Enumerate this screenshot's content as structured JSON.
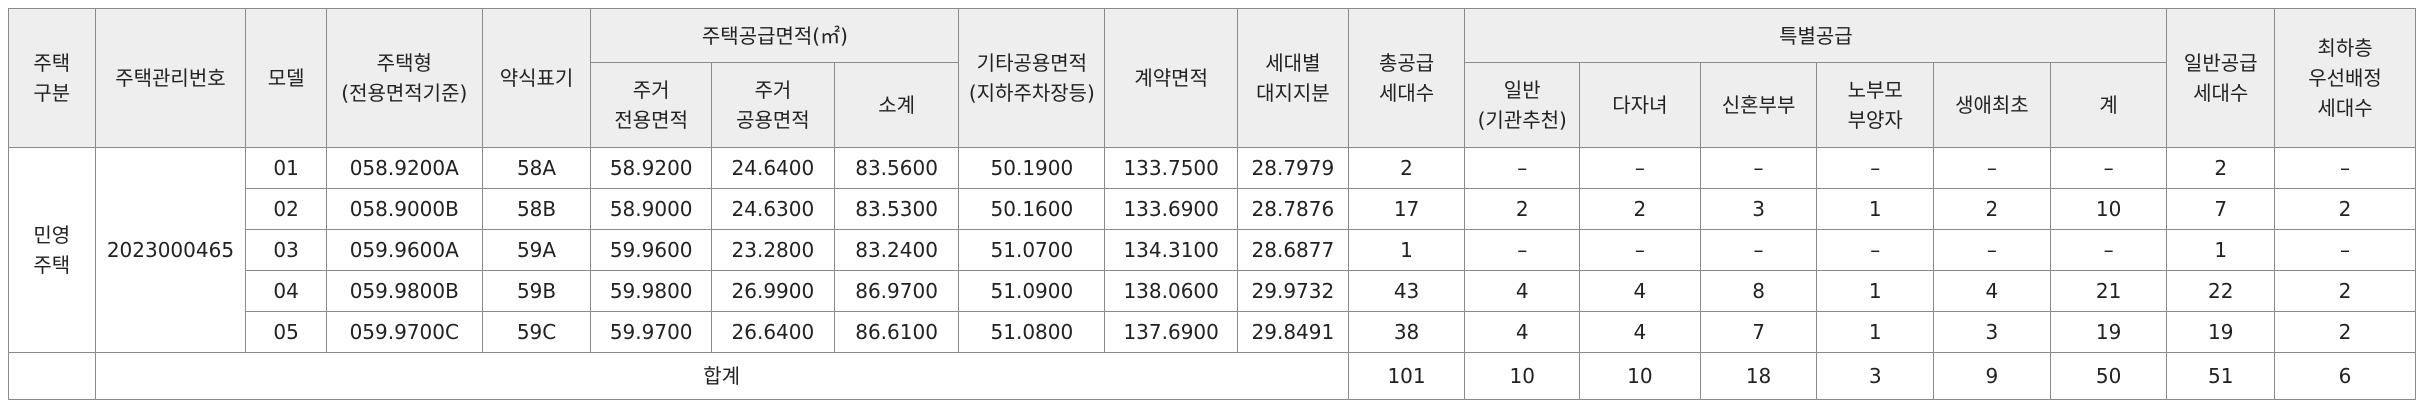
{
  "headers": {
    "housing_type": [
      "주택",
      "구분"
    ],
    "management_no": "주택관리번호",
    "model": "모델",
    "house_type": [
      "주택형",
      "(전용면적기준)"
    ],
    "abbr": "약식표기",
    "supply_area": "주택공급면적(㎡)",
    "exclusive_area": [
      "주거",
      "전용면적"
    ],
    "common_area": [
      "주거",
      "공용면적"
    ],
    "subtotal": "소계",
    "other_common": [
      "기타공용면적",
      "(지하주차장등)"
    ],
    "contract_area": "계약면적",
    "land_share": [
      "세대별",
      "대지지분"
    ],
    "total_units": [
      "총공급",
      "세대수"
    ],
    "special": "특별공급",
    "sp_institution": [
      "일반",
      "(기관추천)"
    ],
    "sp_multichild": "다자녀",
    "sp_newlywed": "신혼부부",
    "sp_parents": [
      "노부모",
      "부양자"
    ],
    "sp_firsttime": "생애최초",
    "sp_sum": "계",
    "general_units": [
      "일반공급",
      "세대수"
    ],
    "lowest_floor": [
      "최하층",
      "우선배정",
      "세대수"
    ]
  },
  "group": {
    "housing_type": [
      "민영",
      "주택"
    ],
    "management_no": "2023000465"
  },
  "rows": [
    {
      "model": "01",
      "type": "058.9200A",
      "abbr": "58A",
      "exclusive": "58.9200",
      "common": "24.6400",
      "subtotal": "83.5600",
      "other": "50.1900",
      "contract": "133.7500",
      "land": "28.7979",
      "total": "2",
      "sp_inst": "–",
      "sp_multi": "–",
      "sp_newly": "–",
      "sp_parents": "–",
      "sp_first": "–",
      "sp_sum": "–",
      "general": "2",
      "lowest": "–"
    },
    {
      "model": "02",
      "type": "058.9000B",
      "abbr": "58B",
      "exclusive": "58.9000",
      "common": "24.6300",
      "subtotal": "83.5300",
      "other": "50.1600",
      "contract": "133.6900",
      "land": "28.7876",
      "total": "17",
      "sp_inst": "2",
      "sp_multi": "2",
      "sp_newly": "3",
      "sp_parents": "1",
      "sp_first": "2",
      "sp_sum": "10",
      "general": "7",
      "lowest": "2"
    },
    {
      "model": "03",
      "type": "059.9600A",
      "abbr": "59A",
      "exclusive": "59.9600",
      "common": "23.2800",
      "subtotal": "83.2400",
      "other": "51.0700",
      "contract": "134.3100",
      "land": "28.6877",
      "total": "1",
      "sp_inst": "–",
      "sp_multi": "–",
      "sp_newly": "–",
      "sp_parents": "–",
      "sp_first": "–",
      "sp_sum": "–",
      "general": "1",
      "lowest": "–"
    },
    {
      "model": "04",
      "type": "059.9800B",
      "abbr": "59B",
      "exclusive": "59.9800",
      "common": "26.9900",
      "subtotal": "86.9700",
      "other": "51.0900",
      "contract": "138.0600",
      "land": "29.9732",
      "total": "43",
      "sp_inst": "4",
      "sp_multi": "4",
      "sp_newly": "8",
      "sp_parents": "1",
      "sp_first": "4",
      "sp_sum": "21",
      "general": "22",
      "lowest": "2"
    },
    {
      "model": "05",
      "type": "059.9700C",
      "abbr": "59C",
      "exclusive": "59.9700",
      "common": "26.6400",
      "subtotal": "86.6100",
      "other": "51.0800",
      "contract": "137.6900",
      "land": "29.8491",
      "total": "38",
      "sp_inst": "4",
      "sp_multi": "4",
      "sp_newly": "7",
      "sp_parents": "1",
      "sp_first": "3",
      "sp_sum": "19",
      "general": "19",
      "lowest": "2"
    }
  ],
  "totals": {
    "label": "합계",
    "total": "101",
    "sp_inst": "10",
    "sp_multi": "10",
    "sp_newly": "18",
    "sp_parents": "3",
    "sp_first": "9",
    "sp_sum": "50",
    "general": "51",
    "lowest": "6"
  }
}
